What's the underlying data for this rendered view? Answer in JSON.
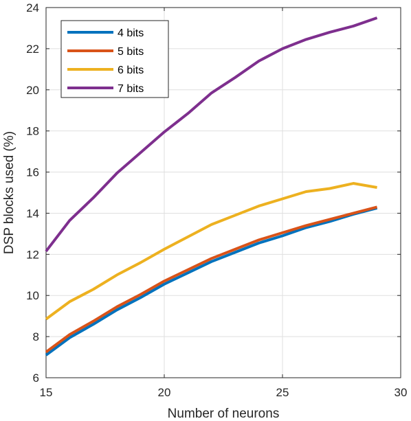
{
  "chart_data": {
    "type": "line",
    "title": "",
    "xlabel": "Number of neurons",
    "ylabel": "DSP blocks used (%)",
    "xlim": [
      15,
      30
    ],
    "ylim": [
      6,
      24
    ],
    "xticks": [
      15,
      20,
      25,
      30
    ],
    "yticks": [
      6,
      8,
      10,
      12,
      14,
      16,
      18,
      20,
      22,
      24
    ],
    "grid": true,
    "legend_position": "top-left",
    "x": [
      15,
      16,
      17,
      18,
      19,
      20,
      21,
      22,
      23,
      24,
      25,
      26,
      27,
      28,
      29
    ],
    "series": [
      {
        "name": "4 bits",
        "color": "#0072BD",
        "values": [
          7.1,
          7.95,
          8.6,
          9.3,
          9.9,
          10.55,
          11.1,
          11.65,
          12.1,
          12.55,
          12.9,
          13.3,
          13.6,
          13.95,
          14.25
        ]
      },
      {
        "name": "5 bits",
        "color": "#D95319",
        "values": [
          7.25,
          8.1,
          8.75,
          9.45,
          10.05,
          10.7,
          11.25,
          11.8,
          12.25,
          12.7,
          13.05,
          13.4,
          13.7,
          14.0,
          14.3
        ]
      },
      {
        "name": "6 bits",
        "color": "#EDB120",
        "values": [
          8.85,
          9.7,
          10.3,
          11.0,
          11.6,
          12.25,
          12.85,
          13.45,
          13.9,
          14.35,
          14.7,
          15.05,
          15.2,
          15.45,
          15.25
        ]
      },
      {
        "name": "7 bits",
        "color": "#7E2F8E",
        "values": [
          12.15,
          13.65,
          14.75,
          15.95,
          16.95,
          17.95,
          18.85,
          19.85,
          20.6,
          21.4,
          22.0,
          22.45,
          22.8,
          23.1,
          23.5
        ]
      }
    ]
  }
}
